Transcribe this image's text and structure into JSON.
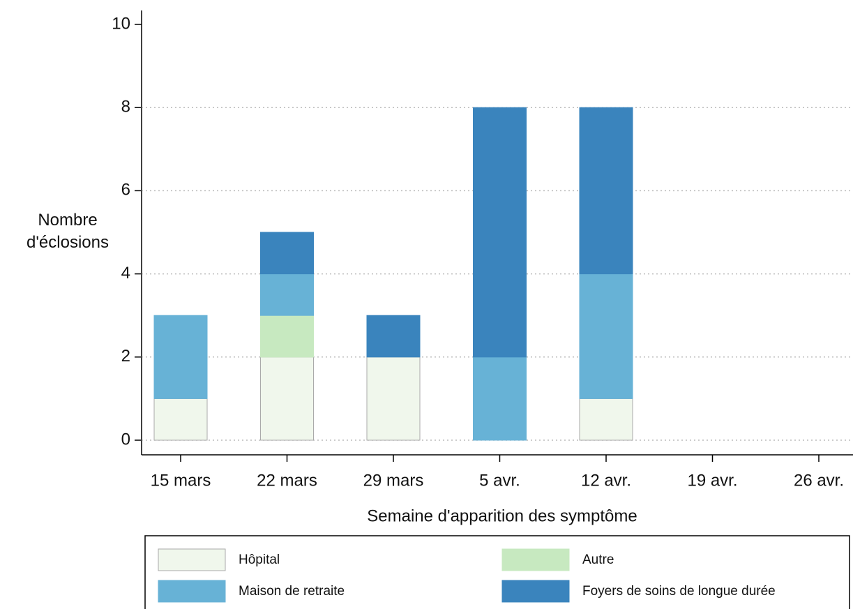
{
  "chart_data": {
    "type": "stacked_bar",
    "x_label": "Semaine d'apparition des symptôme",
    "y_label": "Nombre d'éclosions",
    "categories": [
      "15 mars",
      "22 mars",
      "29 mars",
      "5 avr.",
      "12 avr.",
      "19 avr.",
      "26 avr."
    ],
    "series": [
      {
        "name": "Hôpital",
        "color": "#f0f7ec",
        "values": [
          1,
          2,
          2,
          0,
          1,
          0,
          0
        ]
      },
      {
        "name": "Autre",
        "color": "#c7e9c0",
        "values": [
          0,
          1,
          0,
          0,
          0,
          0,
          0
        ]
      },
      {
        "name": "Maison de retraite",
        "color": "#67b2d6",
        "values": [
          2,
          1,
          0,
          2,
          3,
          0,
          0
        ]
      },
      {
        "name": "Foyers de soins de longue durée",
        "color": "#3a84bd",
        "values": [
          0,
          1,
          1,
          6,
          4,
          0,
          0
        ]
      }
    ],
    "ylim": [
      0,
      10
    ],
    "yticks": [
      0,
      2,
      4,
      6,
      8,
      10
    ],
    "grid": true
  }
}
